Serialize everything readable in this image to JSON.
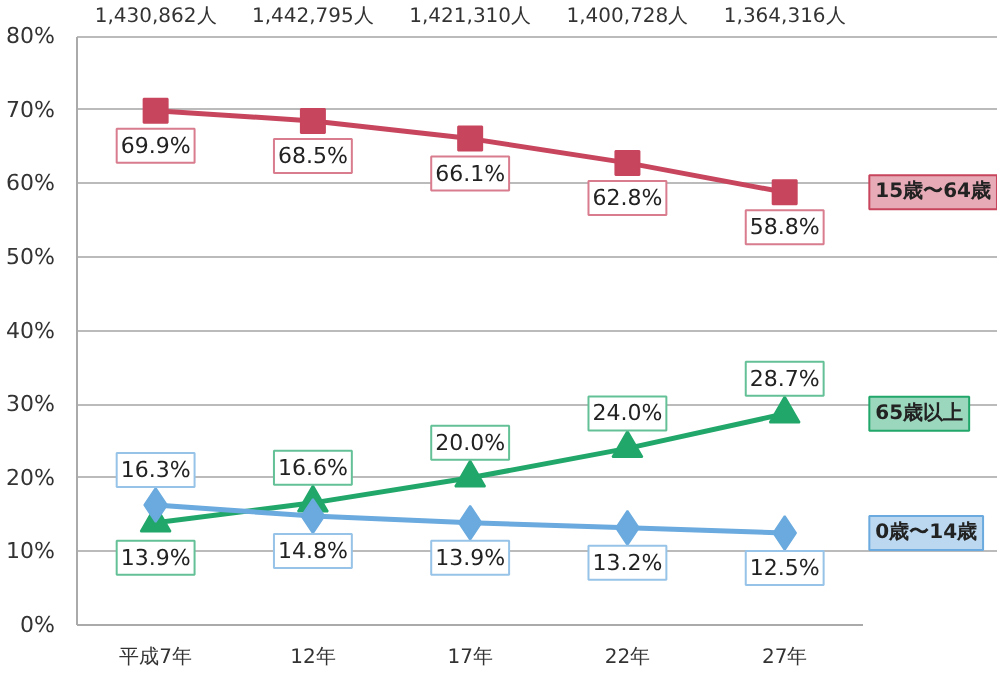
{
  "chart_data": {
    "type": "line",
    "categories": [
      "平成7年",
      "12年",
      "17年",
      "22年",
      "27年"
    ],
    "series": [
      {
        "name": "15歳〜64歳",
        "color": "#c8455e",
        "marker": "square",
        "values": [
          69.9,
          68.5,
          66.1,
          62.8,
          58.8
        ],
        "value_labels": [
          "69.9%",
          "68.5%",
          "66.1%",
          "62.8%",
          "58.8%"
        ]
      },
      {
        "name": "65歳以上",
        "color": "#22a76b",
        "marker": "triangle",
        "values": [
          13.9,
          16.6,
          20.0,
          24.0,
          28.7
        ],
        "value_labels": [
          "13.9%",
          "16.6%",
          "20.0%",
          "24.0%",
          "28.7%"
        ]
      },
      {
        "name": "0歳〜14歳",
        "color": "#6aaade",
        "marker": "diamond",
        "values": [
          16.3,
          14.8,
          13.9,
          13.2,
          12.5
        ],
        "value_labels": [
          "16.3%",
          "14.8%",
          "13.9%",
          "13.2%",
          "12.5%"
        ]
      }
    ],
    "annotations": [
      "1,430,862人",
      "1,442,795人",
      "1,421,310人",
      "1,400,728人",
      "1,364,316人"
    ],
    "ylim": [
      0,
      80
    ],
    "yticks": [
      {
        "value": 0,
        "label": "0%"
      },
      {
        "value": 10,
        "label": "10%"
      },
      {
        "value": 20,
        "label": "20%"
      },
      {
        "value": 30,
        "label": "30%"
      },
      {
        "value": 40,
        "label": "40%"
      },
      {
        "value": 50,
        "label": "50%"
      },
      {
        "value": 60,
        "label": "60%"
      },
      {
        "value": 70,
        "label": "70%"
      },
      {
        "value": 80,
        "label": "80%"
      }
    ],
    "grid": "y",
    "legend": false,
    "line_style": "solid"
  }
}
